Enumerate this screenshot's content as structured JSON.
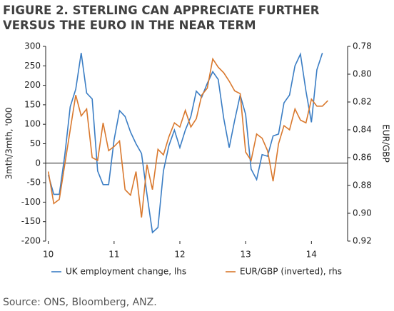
{
  "chart_data": {
    "type": "line",
    "title": [
      "FIGURE 2. STERLING CAN APPRECIATE FURTHER",
      "VERSUS THE EURO IN THE NEAR TERM"
    ],
    "ylabel": "3mth/3mth, '000",
    "y2label": "EUR/GBP",
    "source": "Source: ONS, Bloomberg, ANZ.",
    "x": [
      10.0,
      10.083,
      10.167,
      10.25,
      10.333,
      10.417,
      10.5,
      10.583,
      10.667,
      10.75,
      10.833,
      10.917,
      11.0,
      11.083,
      11.167,
      11.25,
      11.333,
      11.417,
      11.5,
      11.583,
      11.667,
      11.75,
      11.833,
      11.917,
      12.0,
      12.083,
      12.167,
      12.25,
      12.333,
      12.417,
      12.5,
      12.583,
      12.667,
      12.75,
      12.833,
      12.917,
      13.0,
      13.083,
      13.167,
      13.25,
      13.333,
      13.417,
      13.5,
      13.583,
      13.667,
      13.75,
      13.833,
      13.917,
      14.0,
      14.083,
      14.167,
      14.25
    ],
    "series": [
      {
        "name": "UK employment change, lhs",
        "color": "#3a7dc4",
        "values": [
          -30,
          -80,
          -80,
          20,
          145,
          190,
          283,
          180,
          165,
          -20,
          -55,
          -55,
          60,
          135,
          120,
          80,
          50,
          25,
          -80,
          -178,
          -165,
          -20,
          45,
          85,
          40,
          85,
          120,
          185,
          170,
          205,
          235,
          215,
          115,
          40,
          110,
          175,
          125,
          -15,
          -42,
          22,
          18,
          70,
          75,
          155,
          175,
          250,
          280,
          185,
          105,
          240,
          283,
          null
        ]
      },
      {
        "name": "EUR/GBP (inverted), rhs",
        "color": "#d9782d",
        "axis": "y2",
        "values": [
          0.87,
          0.893,
          0.89,
          0.865,
          0.84,
          0.815,
          0.83,
          0.825,
          0.86,
          0.862,
          0.835,
          0.855,
          0.852,
          0.848,
          0.883,
          0.887,
          0.87,
          0.903,
          0.865,
          0.883,
          0.854,
          0.858,
          0.845,
          0.835,
          0.838,
          0.826,
          0.838,
          0.832,
          0.815,
          0.81,
          0.789,
          0.795,
          0.799,
          0.805,
          0.812,
          0.814,
          0.856,
          0.862,
          0.843,
          0.846,
          0.855,
          0.877,
          0.85,
          0.837,
          0.84,
          0.825,
          0.833,
          0.835,
          0.818,
          0.823,
          0.823,
          0.819
        ]
      }
    ],
    "xlim": [
      9.96,
      14.55
    ],
    "xticks": [
      10,
      11,
      12,
      13,
      14
    ],
    "ylim": [
      -200,
      300
    ],
    "yticks": [
      -200,
      -150,
      -100,
      -50,
      0,
      50,
      100,
      150,
      200,
      250,
      300
    ],
    "y2lim": [
      0.92,
      0.78
    ],
    "y2ticks": [
      {
        "value": 0.92,
        "label": "0.92"
      },
      {
        "value": 0.9,
        "label": "0.90"
      },
      {
        "value": 0.88,
        "label": "0.88"
      },
      {
        "value": 0.86,
        "label": "0.86"
      },
      {
        "value": 0.84,
        "label": "0.84"
      },
      {
        "value": 0.82,
        "label": "0.82"
      },
      {
        "value": 0.8,
        "label": "0.80"
      },
      {
        "value": 0.78,
        "label": "0.78"
      }
    ],
    "grid": false
  }
}
